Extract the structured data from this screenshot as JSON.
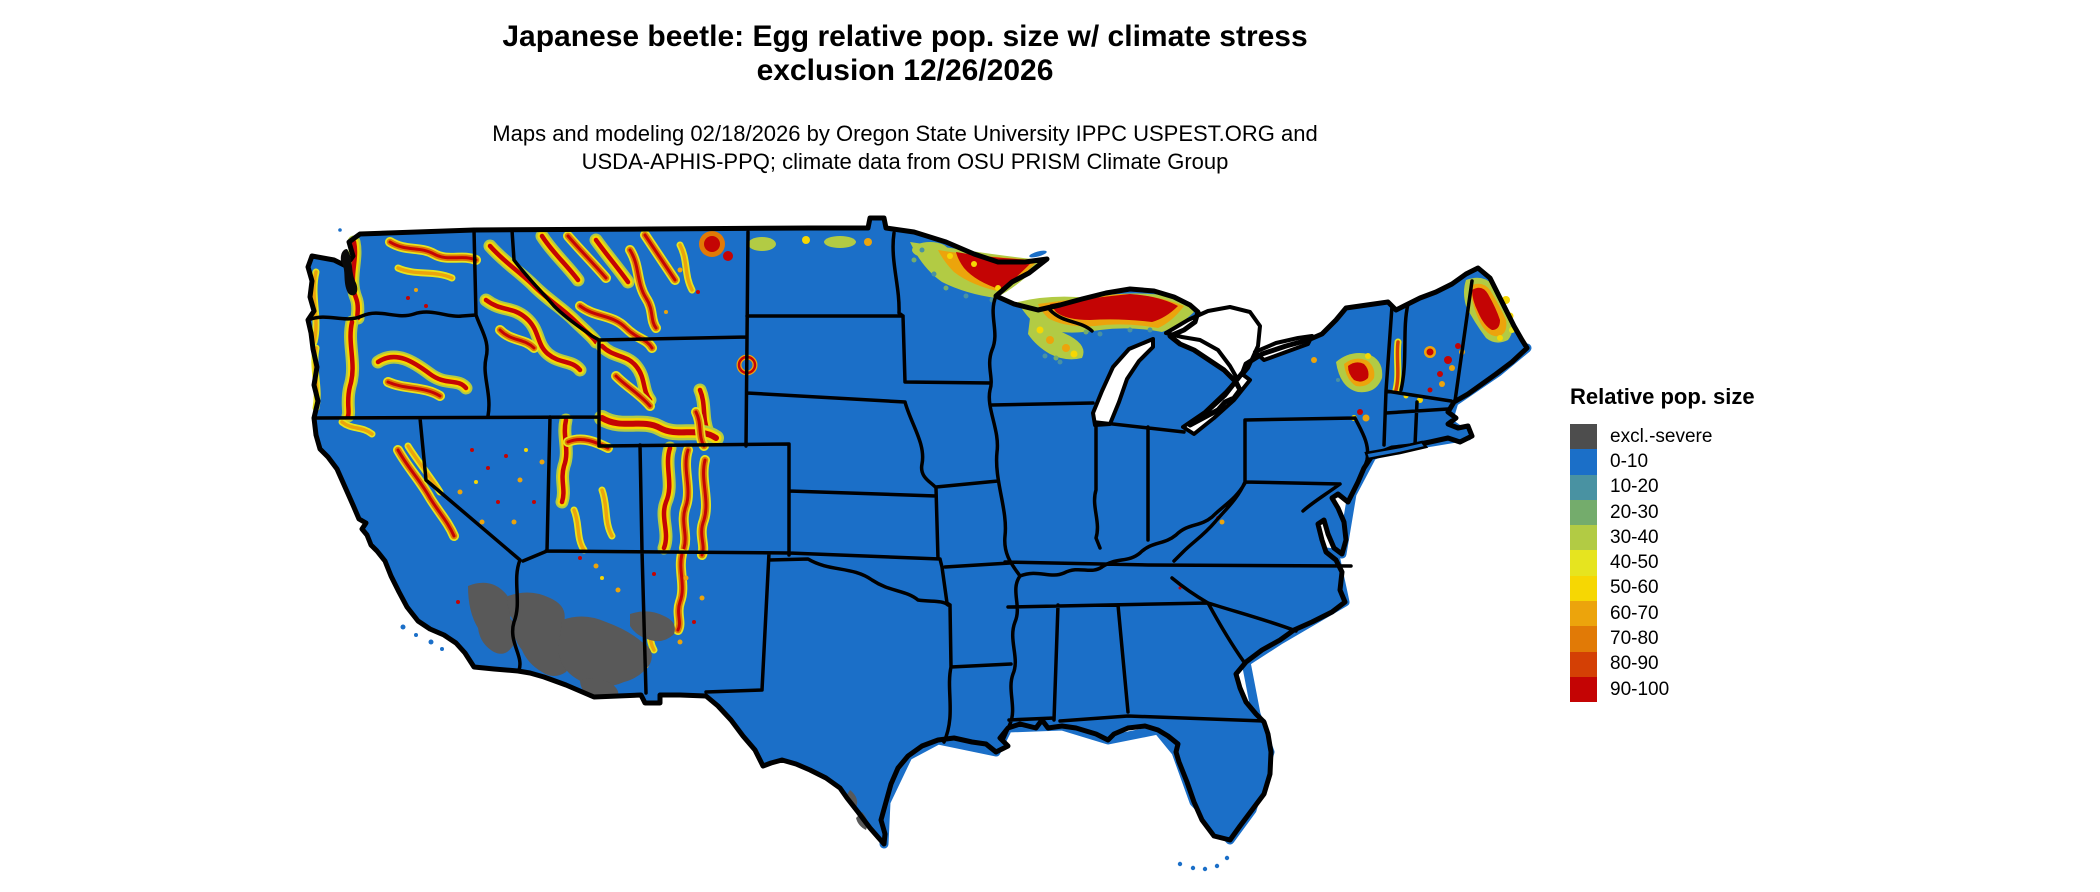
{
  "title": {
    "line1": "Japanese beetle: Egg relative pop. size w/ climate stress",
    "line2": "exclusion 12/26/2026"
  },
  "subtitle": {
    "line1": "Maps and modeling 02/18/2026 by Oregon State University IPPC USPEST.ORG and",
    "line2": "USDA-APHIS-PPQ; climate data from OSU PRISM Climate Group"
  },
  "legend": {
    "title": "Relative pop. size",
    "items": [
      {
        "label": "excl.-severe",
        "color": "#4d4d4d"
      },
      {
        "label": "0-10",
        "color": "#1b6fc8"
      },
      {
        "label": "10-20",
        "color": "#4992a2"
      },
      {
        "label": "20-30",
        "color": "#74ac6c"
      },
      {
        "label": "30-40",
        "color": "#b2cb44"
      },
      {
        "label": "40-50",
        "color": "#e6e41f"
      },
      {
        "label": "50-60",
        "color": "#f6d703"
      },
      {
        "label": "60-70",
        "color": "#eca40c"
      },
      {
        "label": "70-80",
        "color": "#e17a06"
      },
      {
        "label": "80-90",
        "color": "#d44005"
      },
      {
        "label": "90-100",
        "color": "#c40404"
      }
    ]
  },
  "map": {
    "base_color": "#1b6fc8",
    "excluded_fill": "#595959",
    "border_color": "#000000",
    "water_color": "#ffffff"
  }
}
